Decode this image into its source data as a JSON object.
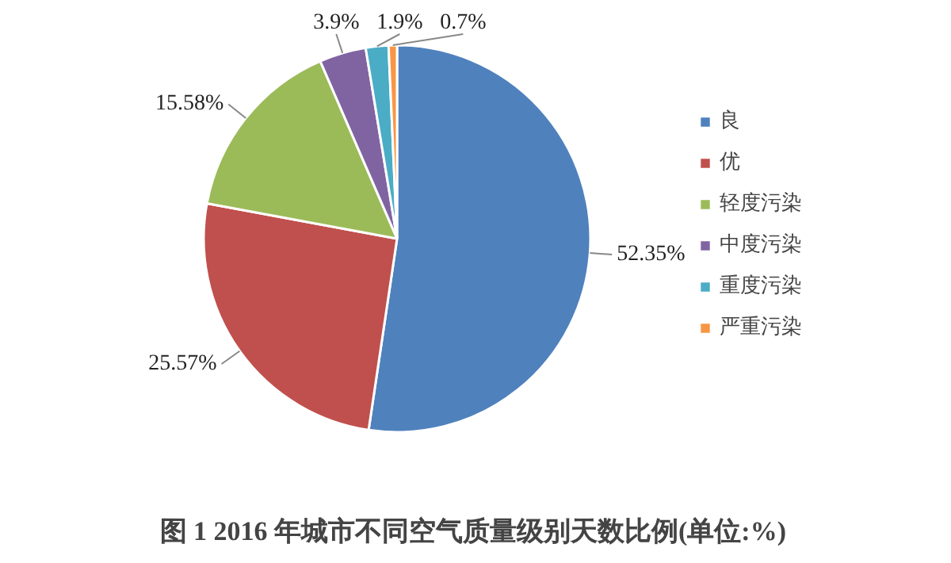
{
  "chart_data": {
    "type": "pie",
    "title": "图 1  2016 年城市不同空气质量级别天数比例(单位:%)",
    "categories": [
      "良",
      "优",
      "轻度污染",
      "中度污染",
      "重度污染",
      "严重污染"
    ],
    "values": [
      52.35,
      25.57,
      15.58,
      3.9,
      1.9,
      0.7
    ],
    "colors": [
      "#4f81bd",
      "#c0504d",
      "#9bbb59",
      "#8064a2",
      "#4bacc6",
      "#f79646"
    ],
    "value_labels": [
      "52.35%",
      "25.57%",
      "15.58%",
      "3.9%",
      "1.9%",
      "0.7%"
    ],
    "legend": "right"
  }
}
